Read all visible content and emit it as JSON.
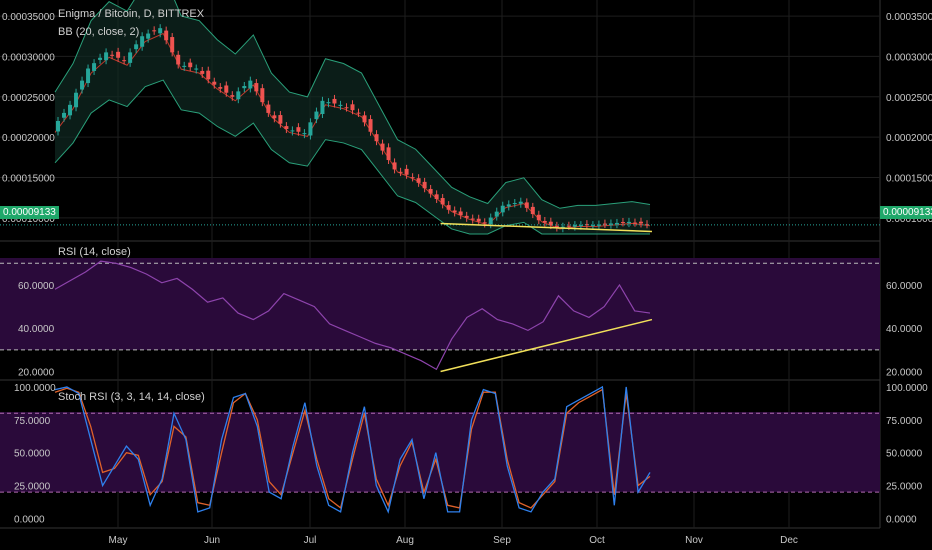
{
  "header": {
    "symbol": "Enigma / Bitcoin, D, BITTREX",
    "bb_label": "BB (20, close, 2)",
    "rsi_label": "RSI (14, close)",
    "stoch_label": "Stoch RSI (3, 3, 14, 14, close)"
  },
  "last_price": "0.00009133",
  "colors": {
    "up": "#26a69a",
    "down": "#ef5350",
    "bb_band": "#2aa07a",
    "bb_basis": "#c0392b",
    "rsi_line": "#8e44ad",
    "stoch_k": "#2f80ed",
    "stoch_d": "#e0622a",
    "trendline": "#f1e05a",
    "pane_fill": "#2a0a3a"
  },
  "chart_data": [
    {
      "type": "line",
      "title": "Enigma / Bitcoin, D, BITTREX",
      "indicator": "BB (20, close, 2)",
      "x_ticks": [
        "May",
        "Jun",
        "Jul",
        "Aug",
        "Sep",
        "Oct",
        "Nov",
        "Dec"
      ],
      "y_ticks": [
        "0.00035000",
        "0.00030000",
        "0.00025000",
        "0.00020000",
        "0.00015000",
        "0.00010000"
      ],
      "ylim": [
        7.5e-05,
        0.00036
      ],
      "last_value": 9.133e-05,
      "series": [
        {
          "values": [
            0.00021,
            0.00024,
            0.000285,
            0.000305,
            0.000295,
            0.000325,
            0.000335,
            0.00029,
            0.000285,
            0.000265,
            0.00025,
            0.00027,
            0.00023,
            0.00021,
            0.000205,
            0.000245,
            0.00024,
            0.00023,
            0.000195,
            0.00016,
            0.00015,
            0.00013,
            0.00011,
            0.0001,
            9.3e-05,
            0.000115,
            0.00012,
            9.7e-05,
            8.8e-05,
            9.1e-05,
            9.1e-05,
            9.3e-05,
            9.5e-05,
            9.2e-05
          ]
        }
      ],
      "trendlines": [
        {
          "from": [
            "Aug 12",
            9.3e-05
          ],
          "to": [
            "Oct 18",
            8.3e-05
          ]
        }
      ]
    },
    {
      "type": "line",
      "title": "RSI (14, close)",
      "x_ticks": [
        "May",
        "Jun",
        "Jul",
        "Aug",
        "Sep",
        "Oct",
        "Nov",
        "Dec"
      ],
      "y_ticks": [
        "60.0000",
        "40.0000",
        "20.0000"
      ],
      "ylim": [
        17,
        78
      ],
      "bands": [
        30,
        70
      ],
      "series": [
        {
          "values": [
            58,
            62,
            66,
            71,
            70,
            68,
            65,
            61,
            63,
            58,
            52,
            54,
            47,
            44,
            48,
            56,
            53,
            50,
            42,
            39,
            36,
            33,
            31,
            28,
            25,
            21,
            35,
            45,
            49,
            44,
            42,
            39,
            43,
            55,
            48,
            45,
            50,
            60,
            48,
            47
          ]
        }
      ],
      "trendlines": [
        {
          "from": [
            "Aug 12",
            20
          ],
          "to": [
            "Oct 18",
            44
          ]
        }
      ]
    },
    {
      "type": "line",
      "title": "Stoch RSI (3, 3, 14, 14, close)",
      "x_ticks": [
        "May",
        "Jun",
        "Jul",
        "Aug",
        "Sep",
        "Oct",
        "Nov",
        "Dec"
      ],
      "y_ticks": [
        "100.0000",
        "75.0000",
        "50.0000",
        "25.0000",
        "0.0000"
      ],
      "ylim": [
        -5,
        103
      ],
      "bands": [
        20,
        80
      ],
      "series": [
        {
          "values": [
            98,
            100,
            95,
            60,
            25,
            40,
            55,
            45,
            10,
            30,
            80,
            60,
            5,
            8,
            60,
            92,
            95,
            70,
            20,
            15,
            55,
            88,
            40,
            10,
            5,
            50,
            85,
            25,
            5,
            45,
            60,
            15,
            50,
            5,
            5,
            75,
            98,
            95,
            40,
            8,
            5,
            20,
            30,
            85,
            90,
            95,
            100,
            10,
            100,
            20,
            35
          ]
        },
        {
          "values": [
            96,
            99,
            96,
            70,
            35,
            38,
            50,
            48,
            18,
            28,
            70,
            62,
            12,
            10,
            50,
            88,
            95,
            75,
            28,
            18,
            50,
            82,
            45,
            15,
            8,
            45,
            80,
            30,
            10,
            40,
            58,
            20,
            45,
            10,
            8,
            68,
            96,
            96,
            45,
            12,
            8,
            18,
            28,
            80,
            88,
            93,
            98,
            18,
            95,
            25,
            32
          ]
        }
      ]
    }
  ]
}
